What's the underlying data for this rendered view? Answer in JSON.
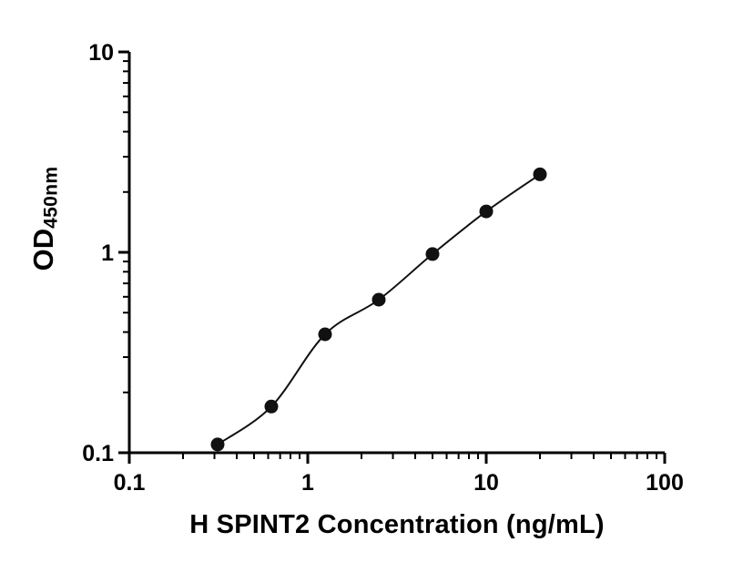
{
  "figure": {
    "background": "#ffffff"
  },
  "chart_data": {
    "type": "scatter",
    "title": "",
    "xlabel": "H SPINT2 Concentration (ng/mL)",
    "ylabel": "OD",
    "ylabel_subscript": "450nm",
    "xscale": "log",
    "yscale": "log",
    "xlim": [
      0.1,
      100
    ],
    "ylim": [
      0.1,
      10
    ],
    "grid": false,
    "legend": false,
    "axis_color": "#000000",
    "x_tick_labels": [
      {
        "value": 0.1,
        "label": "0.1"
      },
      {
        "value": 1,
        "label": "1"
      },
      {
        "value": 10,
        "label": "10"
      },
      {
        "value": 100,
        "label": "100"
      }
    ],
    "y_tick_labels": [
      {
        "value": 0.1,
        "label": "0.1"
      },
      {
        "value": 1,
        "label": "1"
      },
      {
        "value": 10,
        "label": "10"
      }
    ],
    "series": [
      {
        "x": [
          0.3125,
          0.625,
          1.25,
          2.5,
          5,
          10,
          20
        ],
        "y": [
          0.11,
          0.17,
          0.39,
          0.58,
          0.98,
          1.6,
          2.45
        ],
        "marker": "circle",
        "marker_color": "#111111",
        "line": true,
        "line_color": "#111111"
      }
    ]
  }
}
